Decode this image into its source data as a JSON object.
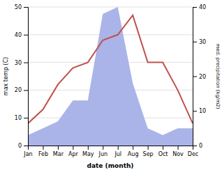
{
  "chart_data": {
    "type": "line",
    "xlabel": "date (month)",
    "ylabel": "max temp (C)",
    "y2label": "med. precipitation (kg/m2)",
    "categories": [
      "Jan",
      "Feb",
      "Mar",
      "Apr",
      "May",
      "Jun",
      "Jul",
      "Aug",
      "Sep",
      "Oct",
      "Nov",
      "Dec"
    ],
    "series": [
      {
        "type": "area",
        "axis": "y2",
        "color": "#aab4e8",
        "values": [
          3,
          5,
          7,
          13,
          13,
          38,
          40,
          18,
          5,
          3,
          5,
          5
        ]
      },
      {
        "type": "line",
        "color": "#c0504d",
        "values": [
          8,
          13,
          22,
          28,
          30,
          38,
          40,
          47,
          30,
          30,
          20,
          8
        ]
      }
    ],
    "ylim": [
      0,
      50
    ],
    "yticks": [
      0,
      10,
      20,
      30,
      40,
      50
    ],
    "y2lim": [
      0,
      40
    ],
    "y2ticks": [
      0,
      10,
      20,
      30,
      40
    ],
    "grid": true
  }
}
